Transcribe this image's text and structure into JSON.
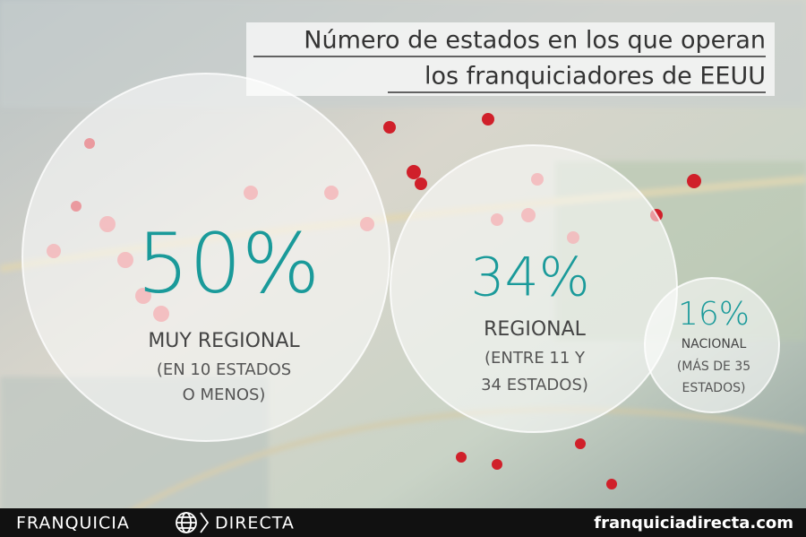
{
  "header": {
    "title_lines": [
      "Número de estados en los que operan",
      "los franquiciadores de EEUU"
    ]
  },
  "items": [
    {
      "value": "50%",
      "label": "MUY REGIONAL",
      "detail_lines": [
        "(EN 10 ESTADOS",
        "O MENOS)"
      ]
    },
    {
      "value": "34%",
      "label": "REGIONAL",
      "detail_lines": [
        "(ENTRE 11 Y",
        "34 ESTADOS)"
      ]
    },
    {
      "value": "16%",
      "label": "NACIONAL",
      "detail_lines": [
        "(MÁS DE 35",
        "ESTADOS)"
      ]
    }
  ],
  "footer": {
    "brand_left": "FRANQUICIA",
    "brand_right": "DIRECTA",
    "url": "franquiciadirecta.com"
  }
}
